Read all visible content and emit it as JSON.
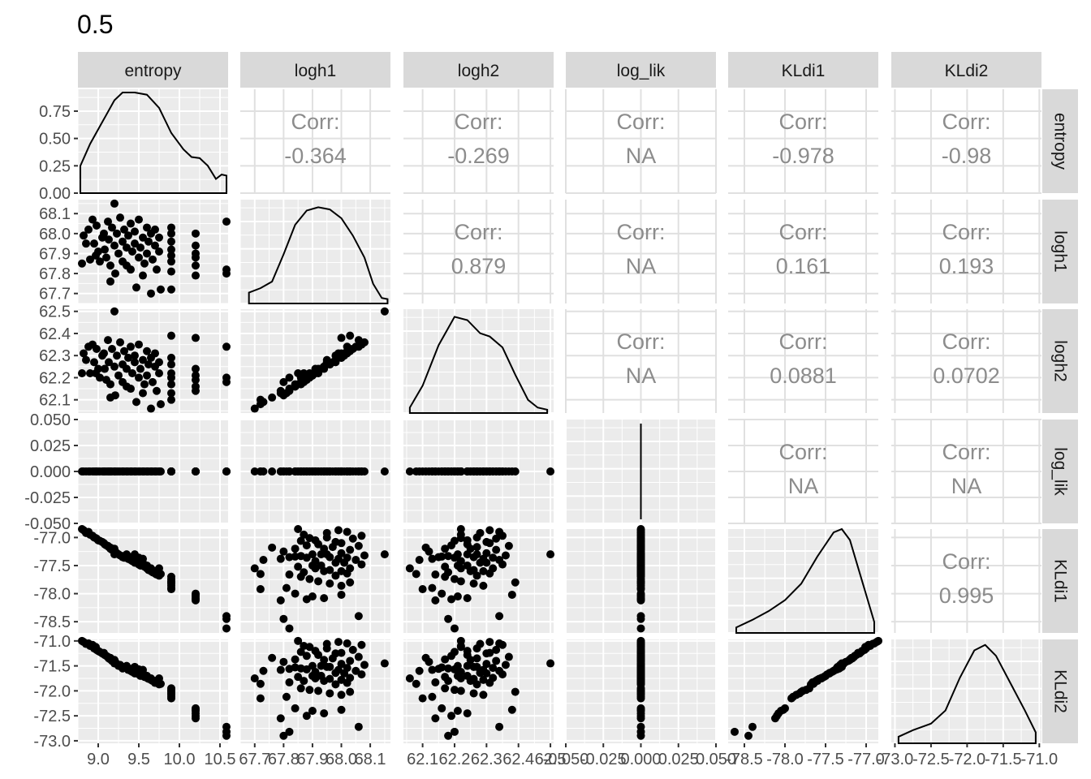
{
  "chart_data": {
    "type": "scatter",
    "title": "0.5",
    "variables": [
      "entropy",
      "logh1",
      "logh2",
      "log_lik",
      "KLdi1",
      "KLdi2"
    ],
    "axis_ranges": {
      "entropy": [
        8.75,
        10.6
      ],
      "logh1": [
        67.65,
        68.17
      ],
      "logh2": [
        62.04,
        62.51
      ],
      "log_lik": [
        -0.05,
        0.05
      ],
      "KLdi1": [
        -78.7,
        -76.85
      ],
      "KLdi2": [
        -73.05,
        -70.97
      ]
    },
    "ticks": {
      "entropy": {
        "values": [
          9.0,
          9.5,
          10.0,
          10.5
        ],
        "labels": [
          "9.0",
          "9.5",
          "10.0",
          "10.5"
        ]
      },
      "logh1": {
        "values": [
          67.7,
          67.8,
          67.9,
          68.0,
          68.1
        ],
        "labels": [
          "67.7",
          "67.8",
          "67.9",
          "68.0",
          "68.1"
        ]
      },
      "logh2": {
        "values": [
          62.1,
          62.2,
          62.3,
          62.4,
          62.5
        ],
        "labels": [
          "62.1",
          "62.2",
          "62.3",
          "62.4",
          "62.5"
        ]
      },
      "log_lik": {
        "values": [
          -0.05,
          -0.025,
          0.0,
          0.025,
          0.05
        ],
        "labels": [
          "-0.050",
          "-0.025",
          "0.000",
          "0.025",
          "0.050"
        ]
      },
      "KLdi1": {
        "values": [
          -78.5,
          -78.0,
          -77.5,
          -77.0
        ],
        "labels": [
          "-78.5",
          "-78.0",
          "-77.5",
          "-77.0"
        ]
      },
      "KLdi2": {
        "values": [
          -73.0,
          -72.5,
          -72.0,
          -71.5,
          -71.0
        ],
        "labels": [
          "-73.0",
          "-72.5",
          "-72.0",
          "-71.5",
          "-71.0"
        ]
      }
    },
    "density_axis": {
      "values": [
        0.0,
        0.25,
        0.5,
        0.75
      ],
      "labels": [
        "0.00",
        "0.25",
        "0.50",
        "0.75"
      ],
      "range": [
        0,
        0.95
      ]
    },
    "density_curves": {
      "entropy": [
        [
          8.78,
          0.25
        ],
        [
          8.9,
          0.45
        ],
        [
          9.05,
          0.65
        ],
        [
          9.2,
          0.85
        ],
        [
          9.3,
          0.92
        ],
        [
          9.45,
          0.92
        ],
        [
          9.6,
          0.9
        ],
        [
          9.75,
          0.78
        ],
        [
          9.9,
          0.55
        ],
        [
          10.05,
          0.4
        ],
        [
          10.15,
          0.33
        ],
        [
          10.25,
          0.32
        ],
        [
          10.35,
          0.25
        ],
        [
          10.45,
          0.13
        ],
        [
          10.52,
          0.17
        ],
        [
          10.58,
          0.16
        ]
      ],
      "logh1": [
        [
          67.68,
          0.1
        ],
        [
          67.72,
          0.14
        ],
        [
          67.76,
          0.2
        ],
        [
          67.8,
          0.45
        ],
        [
          67.84,
          0.72
        ],
        [
          67.88,
          0.85
        ],
        [
          67.92,
          0.88
        ],
        [
          67.96,
          0.86
        ],
        [
          68.0,
          0.78
        ],
        [
          68.04,
          0.62
        ],
        [
          68.08,
          0.42
        ],
        [
          68.11,
          0.18
        ],
        [
          68.14,
          0.05
        ],
        [
          68.16,
          0.04
        ]
      ],
      "logh2": [
        [
          62.06,
          0.05
        ],
        [
          62.1,
          0.25
        ],
        [
          62.15,
          0.62
        ],
        [
          62.2,
          0.88
        ],
        [
          62.24,
          0.85
        ],
        [
          62.28,
          0.73
        ],
        [
          62.31,
          0.7
        ],
        [
          62.35,
          0.6
        ],
        [
          62.39,
          0.35
        ],
        [
          62.43,
          0.12
        ],
        [
          62.46,
          0.05
        ],
        [
          62.49,
          0.03
        ]
      ],
      "KLdi1": [
        [
          -78.6,
          0.05
        ],
        [
          -78.4,
          0.12
        ],
        [
          -78.2,
          0.2
        ],
        [
          -78.0,
          0.3
        ],
        [
          -77.8,
          0.45
        ],
        [
          -77.6,
          0.7
        ],
        [
          -77.4,
          0.92
        ],
        [
          -77.3,
          0.95
        ],
        [
          -77.2,
          0.85
        ],
        [
          -77.1,
          0.6
        ],
        [
          -77.0,
          0.35
        ],
        [
          -76.9,
          0.1
        ]
      ],
      "KLdi2": [
        [
          -72.95,
          0.06
        ],
        [
          -72.75,
          0.12
        ],
        [
          -72.5,
          0.18
        ],
        [
          -72.3,
          0.3
        ],
        [
          -72.1,
          0.6
        ],
        [
          -71.9,
          0.85
        ],
        [
          -71.75,
          0.9
        ],
        [
          -71.6,
          0.8
        ],
        [
          -71.4,
          0.55
        ],
        [
          -71.2,
          0.3
        ],
        [
          -71.05,
          0.1
        ]
      ]
    },
    "log_lik_constant": 0.0,
    "correlations": [
      {
        "row": "entropy",
        "col": "logh1",
        "label": "Corr:",
        "value": "-0.364"
      },
      {
        "row": "entropy",
        "col": "logh2",
        "label": "Corr:",
        "value": "-0.269"
      },
      {
        "row": "entropy",
        "col": "log_lik",
        "label": "Corr:",
        "value": "NA"
      },
      {
        "row": "entropy",
        "col": "KLdi1",
        "label": "Corr:",
        "value": "-0.978"
      },
      {
        "row": "entropy",
        "col": "KLdi2",
        "label": "Corr:",
        "value": "-0.98"
      },
      {
        "row": "logh1",
        "col": "logh2",
        "label": "Corr:",
        "value": "0.879"
      },
      {
        "row": "logh1",
        "col": "log_lik",
        "label": "Corr:",
        "value": "NA"
      },
      {
        "row": "logh1",
        "col": "KLdi1",
        "label": "Corr:",
        "value": "0.161"
      },
      {
        "row": "logh1",
        "col": "KLdi2",
        "label": "Corr:",
        "value": "0.193"
      },
      {
        "row": "logh2",
        "col": "log_lik",
        "label": "Corr:",
        "value": "NA"
      },
      {
        "row": "logh2",
        "col": "KLdi1",
        "label": "Corr:",
        "value": "0.0881"
      },
      {
        "row": "logh2",
        "col": "KLdi2",
        "label": "Corr:",
        "value": "0.0702"
      },
      {
        "row": "log_lik",
        "col": "KLdi1",
        "label": "Corr:",
        "value": "NA"
      },
      {
        "row": "log_lik",
        "col": "KLdi2",
        "label": "Corr:",
        "value": "NA"
      },
      {
        "row": "KLdi1",
        "col": "KLdi2",
        "label": "Corr:",
        "value": "0.995"
      }
    ],
    "observations": [
      {
        "entropy": 8.8,
        "logh1": 67.85,
        "logh2": 62.22,
        "KLdi1": -76.85,
        "KLdi2": -71.0
      },
      {
        "entropy": 8.82,
        "logh1": 67.99,
        "logh2": 62.31,
        "KLdi1": -76.87,
        "KLdi2": -71.02
      },
      {
        "entropy": 8.88,
        "logh1": 68.02,
        "logh2": 62.34,
        "KLdi1": -76.9,
        "KLdi2": -71.05
      },
      {
        "entropy": 8.9,
        "logh1": 67.87,
        "logh2": 62.22,
        "KLdi1": -76.95,
        "KLdi2": -71.1
      },
      {
        "entropy": 8.93,
        "logh1": 68.07,
        "logh2": 62.35,
        "KLdi1": -76.97,
        "KLdi2": -71.08
      },
      {
        "entropy": 8.95,
        "logh1": 67.95,
        "logh2": 62.27,
        "KLdi1": -77.0,
        "KLdi2": -71.15
      },
      {
        "entropy": 8.97,
        "logh1": 67.89,
        "logh2": 62.22,
        "KLdi1": -77.01,
        "KLdi2": -71.12
      },
      {
        "entropy": 8.98,
        "logh1": 68.04,
        "logh2": 62.33,
        "KLdi1": -77.02,
        "KLdi2": -71.18
      },
      {
        "entropy": 9.0,
        "logh1": 67.91,
        "logh2": 62.24,
        "KLdi1": -77.05,
        "KLdi2": -71.2
      },
      {
        "entropy": 9.02,
        "logh1": 67.86,
        "logh2": 62.2,
        "KLdi1": -77.06,
        "KLdi2": -71.22
      },
      {
        "entropy": 9.05,
        "logh1": 67.98,
        "logh2": 62.3,
        "KLdi1": -77.08,
        "KLdi2": -71.25
      },
      {
        "entropy": 9.07,
        "logh1": 68.0,
        "logh2": 62.31,
        "KLdi1": -77.1,
        "KLdi2": -71.24
      },
      {
        "entropy": 9.08,
        "logh1": 67.92,
        "logh2": 62.24,
        "KLdi1": -77.12,
        "KLdi2": -71.28
      },
      {
        "entropy": 9.1,
        "logh1": 67.88,
        "logh2": 62.19,
        "KLdi1": -77.14,
        "KLdi2": -71.3
      },
      {
        "entropy": 9.12,
        "logh1": 68.06,
        "logh2": 62.37,
        "KLdi1": -77.15,
        "KLdi2": -71.32
      },
      {
        "entropy": 9.13,
        "logh1": 67.97,
        "logh2": 62.27,
        "KLdi1": -77.17,
        "KLdi2": -71.35
      },
      {
        "entropy": 9.15,
        "logh1": 67.84,
        "logh2": 62.17,
        "KLdi1": -77.2,
        "KLdi2": -71.37
      },
      {
        "entropy": 9.17,
        "logh1": 68.03,
        "logh2": 62.33,
        "KLdi1": -77.22,
        "KLdi2": -71.4
      },
      {
        "entropy": 9.2,
        "logh1": 67.94,
        "logh2": 62.25,
        "KLdi1": -77.2,
        "KLdi2": -71.38
      },
      {
        "entropy": 9.2,
        "logh1": 68.15,
        "logh2": 62.5,
        "KLdi1": -77.3,
        "KLdi2": -71.45
      },
      {
        "entropy": 9.21,
        "logh1": 67.8,
        "logh2": 62.12,
        "KLdi1": -77.25,
        "KLdi2": -71.42
      },
      {
        "entropy": 9.23,
        "logh1": 68.0,
        "logh2": 62.3,
        "KLdi1": -77.28,
        "KLdi2": -71.46
      },
      {
        "entropy": 9.25,
        "logh1": 67.9,
        "logh2": 62.21,
        "KLdi1": -77.3,
        "KLdi2": -71.5
      },
      {
        "entropy": 9.27,
        "logh1": 68.08,
        "logh2": 62.36,
        "KLdi1": -77.32,
        "KLdi2": -71.48
      },
      {
        "entropy": 9.3,
        "logh1": 67.96,
        "logh2": 62.26,
        "KLdi1": -77.35,
        "KLdi2": -71.52
      },
      {
        "entropy": 9.3,
        "logh1": 67.86,
        "logh2": 62.18,
        "KLdi1": -77.33,
        "KLdi2": -71.55
      },
      {
        "entropy": 9.32,
        "logh1": 68.02,
        "logh2": 62.32,
        "KLdi1": -77.36,
        "KLdi2": -71.54
      },
      {
        "entropy": 9.35,
        "logh1": 67.93,
        "logh2": 62.24,
        "KLdi1": -77.3,
        "KLdi2": -71.5
      },
      {
        "entropy": 9.37,
        "logh1": 67.99,
        "logh2": 62.29,
        "KLdi1": -77.38,
        "KLdi2": -71.58
      },
      {
        "entropy": 9.4,
        "logh1": 68.05,
        "logh2": 62.34,
        "KLdi1": -77.4,
        "KLdi2": -71.6
      },
      {
        "entropy": 9.4,
        "logh1": 67.82,
        "logh2": 62.15,
        "KLdi1": -77.35,
        "KLdi2": -71.56
      },
      {
        "entropy": 9.42,
        "logh1": 67.91,
        "logh2": 62.22,
        "KLdi1": -77.42,
        "KLdi2": -71.62
      },
      {
        "entropy": 9.45,
        "logh1": 67.95,
        "logh2": 62.27,
        "KLdi1": -77.3,
        "KLdi2": -71.52
      },
      {
        "entropy": 9.45,
        "logh1": 68.01,
        "logh2": 62.3,
        "KLdi1": -77.45,
        "KLdi2": -71.65
      },
      {
        "entropy": 9.47,
        "logh1": 67.73,
        "logh2": 62.09,
        "KLdi1": -77.4,
        "KLdi2": -71.6
      },
      {
        "entropy": 9.5,
        "logh1": 67.88,
        "logh2": 62.2,
        "KLdi1": -77.36,
        "KLdi2": -71.57
      },
      {
        "entropy": 9.5,
        "logh1": 68.07,
        "logh2": 62.35,
        "KLdi1": -77.48,
        "KLdi2": -71.67
      },
      {
        "entropy": 9.52,
        "logh1": 67.93,
        "logh2": 62.24,
        "KLdi1": -77.5,
        "KLdi2": -71.7
      },
      {
        "entropy": 9.55,
        "logh1": 67.98,
        "logh2": 62.28,
        "KLdi1": -77.45,
        "KLdi2": -71.64
      },
      {
        "entropy": 9.55,
        "logh1": 67.79,
        "logh2": 62.13,
        "KLdi1": -77.38,
        "KLdi2": -71.58
      },
      {
        "entropy": 9.57,
        "logh1": 67.85,
        "logh2": 62.17,
        "KLdi1": -77.52,
        "KLdi2": -71.72
      },
      {
        "entropy": 9.6,
        "logh1": 68.03,
        "logh2": 62.32,
        "KLdi1": -77.55,
        "KLdi2": -71.74
      },
      {
        "entropy": 9.6,
        "logh1": 67.9,
        "logh2": 62.21,
        "KLdi1": -77.5,
        "KLdi2": -71.7
      },
      {
        "entropy": 9.62,
        "logh1": 67.96,
        "logh2": 62.26,
        "KLdi1": -77.58,
        "KLdi2": -71.76
      },
      {
        "entropy": 9.65,
        "logh1": 67.7,
        "logh2": 62.06,
        "KLdi1": -77.55,
        "KLdi2": -71.75
      },
      {
        "entropy": 9.65,
        "logh1": 68.0,
        "logh2": 62.29,
        "KLdi1": -77.6,
        "KLdi2": -71.78
      },
      {
        "entropy": 9.67,
        "logh1": 67.87,
        "logh2": 62.18,
        "KLdi1": -77.62,
        "KLdi2": -71.8
      },
      {
        "entropy": 9.7,
        "logh1": 67.94,
        "logh2": 62.25,
        "KLdi1": -77.6,
        "KLdi2": -71.8
      },
      {
        "entropy": 9.7,
        "logh1": 68.02,
        "logh2": 62.31,
        "KLdi1": -77.64,
        "KLdi2": -71.84
      },
      {
        "entropy": 9.72,
        "logh1": 67.82,
        "logh2": 62.14,
        "KLdi1": -77.66,
        "KLdi2": -71.83
      },
      {
        "entropy": 9.75,
        "logh1": 67.91,
        "logh2": 62.22,
        "KLdi1": -77.55,
        "KLdi2": -71.75
      },
      {
        "entropy": 9.75,
        "logh1": 67.98,
        "logh2": 62.27,
        "KLdi1": -77.68,
        "KLdi2": -71.87
      },
      {
        "entropy": 9.77,
        "logh1": 67.72,
        "logh2": 62.08,
        "KLdi1": -77.65,
        "KLdi2": -71.86
      },
      {
        "entropy": 9.9,
        "logh1": 67.86,
        "logh2": 62.17,
        "KLdi1": -77.7,
        "KLdi2": -71.95
      },
      {
        "entropy": 9.9,
        "logh1": 67.92,
        "logh2": 62.22,
        "KLdi1": -77.78,
        "KLdi2": -72.0
      },
      {
        "entropy": 9.9,
        "logh1": 67.96,
        "logh2": 62.26,
        "KLdi1": -77.82,
        "KLdi2": -72.05
      },
      {
        "entropy": 9.9,
        "logh1": 68.0,
        "logh2": 62.29,
        "KLdi1": -77.86,
        "KLdi2": -72.08
      },
      {
        "entropy": 9.9,
        "logh1": 67.81,
        "logh2": 62.13,
        "KLdi1": -77.9,
        "KLdi2": -72.12
      },
      {
        "entropy": 9.9,
        "logh1": 67.89,
        "logh2": 62.2,
        "KLdi1": -77.74,
        "KLdi2": -71.98
      },
      {
        "entropy": 9.9,
        "logh1": 67.72,
        "logh2": 62.1,
        "KLdi1": -77.92,
        "KLdi2": -72.15
      },
      {
        "entropy": 9.9,
        "logh1": 68.03,
        "logh2": 62.39,
        "KLdi1": -77.8,
        "KLdi2": -72.02
      },
      {
        "entropy": 10.2,
        "logh1": 67.84,
        "logh2": 62.16,
        "KLdi1": -78.0,
        "KLdi2": -72.35
      },
      {
        "entropy": 10.2,
        "logh1": 67.9,
        "logh2": 62.21,
        "KLdi1": -78.05,
        "KLdi2": -72.4
      },
      {
        "entropy": 10.2,
        "logh1": 67.94,
        "logh2": 62.24,
        "KLdi1": -78.08,
        "KLdi2": -72.45
      },
      {
        "entropy": 10.2,
        "logh1": 67.88,
        "logh2": 62.19,
        "KLdi1": -78.1,
        "KLdi2": -72.5
      },
      {
        "entropy": 10.2,
        "logh1": 67.79,
        "logh2": 62.14,
        "KLdi1": -78.12,
        "KLdi2": -72.55
      },
      {
        "entropy": 10.2,
        "logh1": 68.0,
        "logh2": 62.38,
        "KLdi1": -78.02,
        "KLdi2": -72.38
      },
      {
        "entropy": 10.58,
        "logh1": 68.06,
        "logh2": 62.34,
        "KLdi1": -78.4,
        "KLdi2": -72.72
      },
      {
        "entropy": 10.58,
        "logh1": 67.82,
        "logh2": 62.2,
        "KLdi1": -78.62,
        "KLdi2": -72.82
      },
      {
        "entropy": 10.58,
        "logh1": 67.8,
        "logh2": 62.18,
        "KLdi1": -78.45,
        "KLdi2": -72.9
      },
      {
        "entropy": 8.85,
        "logh1": 67.95,
        "logh2": 62.28,
        "KLdi1": -76.92,
        "KLdi2": -71.06
      },
      {
        "entropy": 9.15,
        "logh1": 67.76,
        "logh2": 62.11,
        "KLdi1": -77.18,
        "KLdi2": -71.34
      },
      {
        "entropy": 9.35,
        "logh1": 67.84,
        "logh2": 62.16,
        "KLdi1": -77.34,
        "KLdi2": -71.53
      }
    ]
  }
}
